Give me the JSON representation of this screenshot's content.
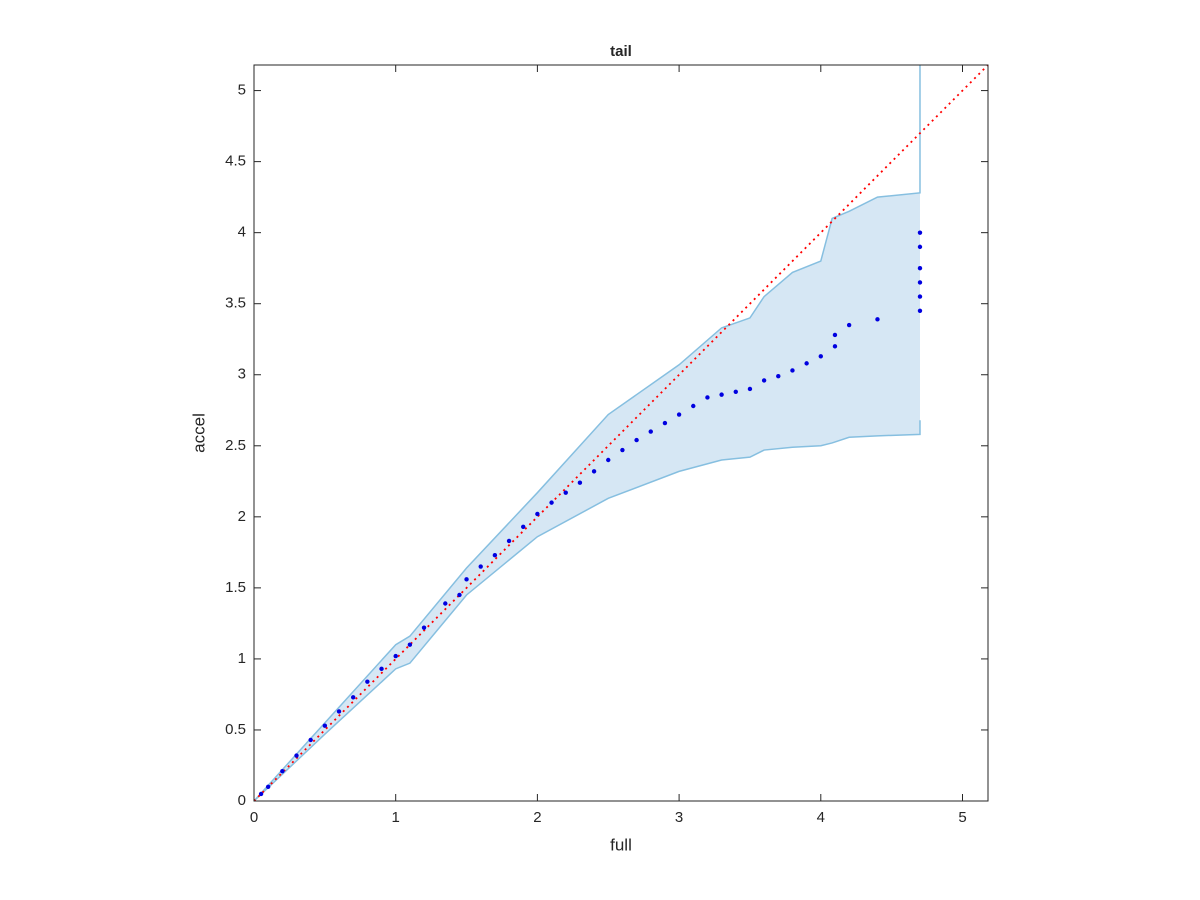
{
  "chart_data": {
    "type": "scatter",
    "title": "tail",
    "xlabel": "full",
    "ylabel": "accel",
    "xlim": [
      0,
      5.18
    ],
    "ylim": [
      0,
      5.18
    ],
    "xticks": [
      0,
      1,
      2,
      3,
      4,
      5
    ],
    "yticks": [
      0,
      0.5,
      1,
      1.5,
      2,
      2.5,
      3,
      3.5,
      4,
      4.5,
      5
    ],
    "band": {
      "x": [
        0,
        0.5,
        1,
        1.1,
        1.5,
        2,
        2.5,
        3,
        3.3,
        3.5,
        3.6,
        3.8,
        4.0,
        4.08,
        4.2,
        4.4,
        4.7,
        4.7
      ],
      "upper": [
        0,
        0.55,
        1.1,
        1.16,
        1.64,
        2.17,
        2.72,
        3.07,
        3.33,
        3.4,
        3.55,
        3.72,
        3.8,
        4.1,
        4.15,
        4.25,
        4.28,
        5.18
      ],
      "lower": [
        0,
        0.47,
        0.93,
        0.97,
        1.45,
        1.86,
        2.13,
        2.32,
        2.4,
        2.42,
        2.47,
        2.49,
        2.5,
        2.52,
        2.56,
        2.57,
        2.58,
        2.68
      ],
      "color": "#d6e7f4",
      "edge_color": "#86bfe0"
    },
    "reference": {
      "x": [
        0,
        5.18
      ],
      "values": [
        0,
        5.18
      ],
      "color": "#ff0000",
      "dashed": true
    },
    "points": {
      "color": "#0000e0",
      "x": [
        0.05,
        0.1,
        0.2,
        0.3,
        0.4,
        0.5,
        0.6,
        0.7,
        0.8,
        0.9,
        1.0,
        1.1,
        1.2,
        1.35,
        1.45,
        1.5,
        1.6,
        1.7,
        1.8,
        1.9,
        2.0,
        2.1,
        2.2,
        2.3,
        2.4,
        2.5,
        2.6,
        2.7,
        2.8,
        2.9,
        3.0,
        3.1,
        3.2,
        3.3,
        3.4,
        3.5,
        3.6,
        3.7,
        3.8,
        3.9,
        4.0,
        4.1,
        4.1,
        4.2,
        4.4,
        4.7,
        4.7,
        4.7,
        4.7,
        4.7,
        4.7
      ],
      "values": [
        0.05,
        0.1,
        0.21,
        0.32,
        0.43,
        0.53,
        0.63,
        0.73,
        0.84,
        0.93,
        1.02,
        1.1,
        1.22,
        1.39,
        1.45,
        1.56,
        1.65,
        1.73,
        1.83,
        1.93,
        2.02,
        2.1,
        2.17,
        2.24,
        2.32,
        2.4,
        2.47,
        2.54,
        2.6,
        2.66,
        2.72,
        2.78,
        2.84,
        2.86,
        2.88,
        2.9,
        2.96,
        2.99,
        3.03,
        3.08,
        3.13,
        3.28,
        3.2,
        3.35,
        3.39,
        3.45,
        3.55,
        3.65,
        3.75,
        3.9,
        4.0
      ]
    }
  }
}
